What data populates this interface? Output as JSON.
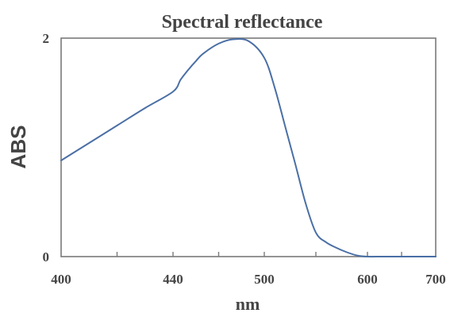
{
  "chart_data": {
    "type": "line",
    "title": "Spectral reflectance",
    "xlabel": "nm",
    "ylabel": "ABS",
    "x_ticks": [
      "400",
      "440",
      "500",
      "600",
      "700"
    ],
    "y_ticks": [
      "0",
      "2"
    ],
    "ylim": [
      0,
      2
    ],
    "grid": false,
    "series": [
      {
        "color": "#4a6fa5",
        "x": [
          400,
          410,
          420,
          430,
          440,
          445,
          450,
          455,
          460,
          470,
          480,
          490,
          500,
          510,
          520,
          530,
          540,
          550,
          560,
          570,
          580,
          590,
          600,
          620,
          640,
          660,
          680,
          700
        ],
        "y": [
          0.88,
          1.04,
          1.2,
          1.36,
          1.51,
          1.62,
          1.71,
          1.79,
          1.86,
          1.95,
          1.99,
          1.97,
          1.82,
          1.55,
          1.2,
          0.85,
          0.49,
          0.22,
          0.13,
          0.08,
          0.04,
          0.01,
          0.0,
          0.0,
          0.0,
          0.0,
          0.0,
          0.0
        ]
      }
    ]
  }
}
